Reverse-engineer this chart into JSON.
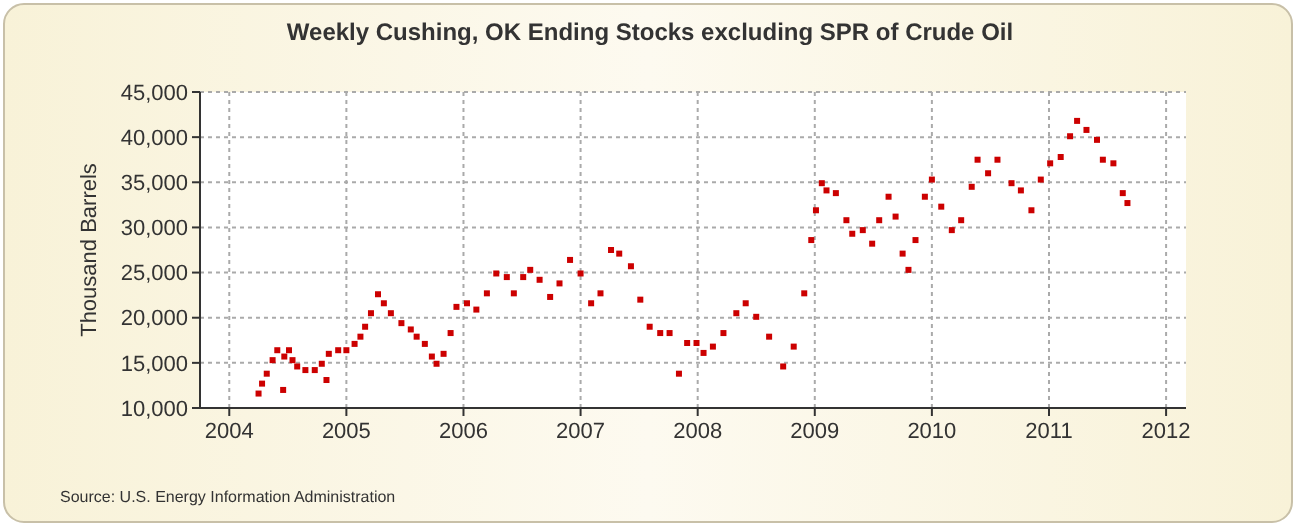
{
  "chart_data": {
    "type": "scatter",
    "title": "Weekly Cushing, OK Ending Stocks excluding SPR of Crude Oil",
    "ylabel": "Thousand Barrels",
    "annotations": [
      "Source: U.S. Energy Information Administration"
    ],
    "x": [
      2004.25,
      2004.28,
      2004.32,
      2004.37,
      2004.41,
      2004.46,
      2004.47,
      2004.51,
      2004.54,
      2004.58,
      2004.65,
      2004.73,
      2004.79,
      2004.83,
      2004.85,
      2004.93,
      2005.0,
      2005.07,
      2005.12,
      2005.16,
      2005.21,
      2005.27,
      2005.32,
      2005.38,
      2005.47,
      2005.55,
      2005.6,
      2005.67,
      2005.73,
      2005.77,
      2005.83,
      2005.89,
      2005.94,
      2006.03,
      2006.11,
      2006.2,
      2006.28,
      2006.37,
      2006.43,
      2006.51,
      2006.57,
      2006.65,
      2006.74,
      2006.82,
      2006.91,
      2007.0,
      2007.09,
      2007.17,
      2007.26,
      2007.33,
      2007.43,
      2007.51,
      2007.59,
      2007.68,
      2007.76,
      2007.84,
      2007.91,
      2007.99,
      2008.05,
      2008.13,
      2008.22,
      2008.33,
      2008.41,
      2008.5,
      2008.61,
      2008.73,
      2008.82,
      2008.91,
      2008.97,
      2009.01,
      2009.06,
      2009.1,
      2009.18,
      2009.27,
      2009.32,
      2009.41,
      2009.49,
      2009.55,
      2009.63,
      2009.69,
      2009.75,
      2009.8,
      2009.86,
      2009.94,
      2010.0,
      2010.08,
      2010.17,
      2010.25,
      2010.34,
      2010.39,
      2010.48,
      2010.56,
      2010.68,
      2010.76,
      2010.85,
      2010.93,
      2011.01,
      2011.1,
      2011.18,
      2011.24,
      2011.32,
      2011.41,
      2011.46,
      2011.55,
      2011.63,
      2011.67
    ],
    "values": [
      11600,
      12700,
      13800,
      15300,
      16400,
      12000,
      15700,
      16400,
      15300,
      14600,
      14200,
      14200,
      14900,
      13100,
      16000,
      16400,
      16400,
      17100,
      17900,
      19000,
      20500,
      22600,
      21600,
      20500,
      19400,
      18700,
      17900,
      17100,
      15700,
      14900,
      16000,
      18300,
      21200,
      21600,
      20900,
      22700,
      24900,
      24500,
      22700,
      24500,
      25300,
      24200,
      22300,
      23800,
      26400,
      24900,
      21600,
      22700,
      27500,
      27100,
      25700,
      22000,
      19000,
      18300,
      18300,
      13800,
      17200,
      17200,
      16100,
      16800,
      18300,
      20500,
      21600,
      20100,
      17900,
      14600,
      16800,
      22700,
      28600,
      31900,
      34900,
      34100,
      33800,
      30800,
      29300,
      29700,
      28200,
      30800,
      33400,
      31200,
      27100,
      25300,
      28600,
      33400,
      35300,
      32300,
      29700,
      30800,
      34500,
      37500,
      36000,
      37500,
      34900,
      34100,
      31900,
      35300,
      37100,
      37800,
      40100,
      41800,
      40800,
      39700,
      37500,
      37100,
      33800,
      32700
    ],
    "color": "#cc0000",
    "marker": "square",
    "grid": true,
    "xlim": [
      2003.75,
      2012.17
    ],
    "xticks": [
      2004,
      2005,
      2006,
      2007,
      2008,
      2009,
      2010,
      2011,
      2012
    ],
    "ylim": [
      10000,
      45000
    ],
    "yticks": [
      {
        "value": 10000,
        "label": "10,000"
      },
      {
        "value": 15000,
        "label": "15,000"
      },
      {
        "value": 20000,
        "label": "20,000"
      },
      {
        "value": 25000,
        "label": "25,000"
      },
      {
        "value": 30000,
        "label": "30,000"
      },
      {
        "value": 35000,
        "label": "35,000"
      },
      {
        "value": 40000,
        "label": "40,000"
      },
      {
        "value": 45000,
        "label": "45,000"
      }
    ]
  }
}
